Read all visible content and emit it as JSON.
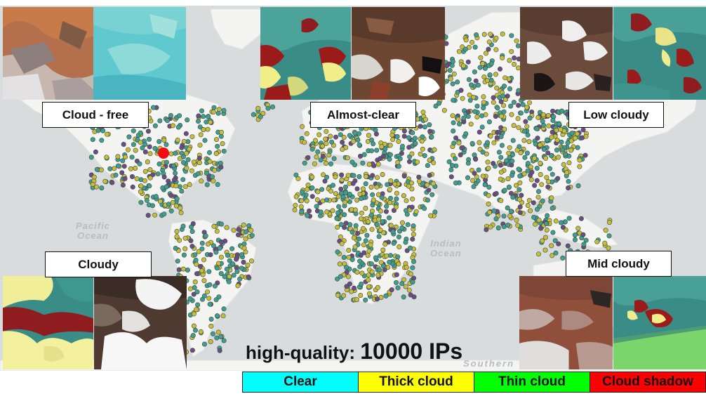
{
  "ocean_labels": [
    {
      "line1": "Pacific",
      "line2": "Ocean"
    },
    {
      "line1": "Indian",
      "line2": "Ocean"
    },
    {
      "line1": "Southern",
      "line2": ""
    }
  ],
  "categories": [
    "Cloud - free",
    "Almost-clear",
    "Low cloudy",
    "Cloudy",
    "Mid cloudy"
  ],
  "caption": {
    "prefix": "high-quality:",
    "count": "10000 IPs"
  },
  "legend": [
    {
      "label": "Clear",
      "color": "#00ffff"
    },
    {
      "label": "Thick cloud",
      "color": "#ffff00"
    },
    {
      "label": "Thin cloud",
      "color": "#00ff00"
    },
    {
      "label": "Cloud shadow",
      "color": "#ff0000"
    }
  ],
  "colors": {
    "point_teal": "#3f9e8f",
    "point_olive": "#c8bd3b",
    "point_purple": "#6d4b83",
    "marker": "#f20d0d",
    "ocean": "#d9dcdd",
    "land": "#f4f4f2"
  }
}
